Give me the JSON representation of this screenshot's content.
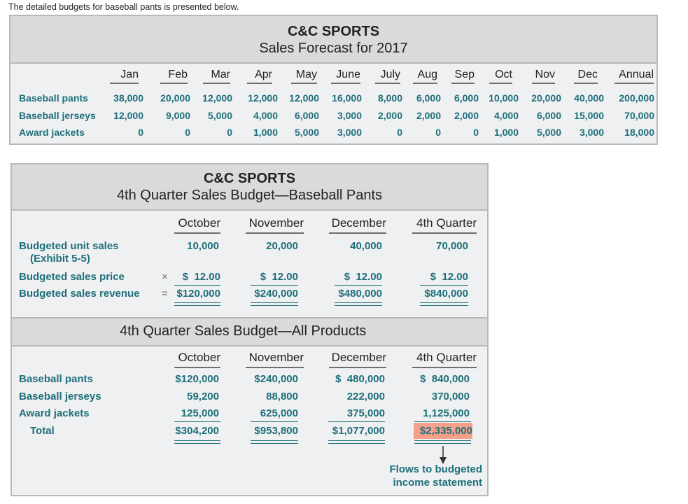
{
  "intro": "The detailed budgets for baseball pants is presented below.",
  "forecast": {
    "company": "C&C SPORTS",
    "title": "Sales Forecast for 2017",
    "months": [
      "Jan",
      "Feb",
      "Mar",
      "Apr",
      "May",
      "June",
      "July",
      "Aug",
      "Sep",
      "Oct",
      "Nov",
      "Dec",
      "Annual"
    ],
    "rows": [
      {
        "label": "Baseball pants",
        "values": [
          "38,000",
          "20,000",
          "12,000",
          "12,000",
          "12,000",
          "16,000",
          "8,000",
          "6,000",
          "6,000",
          "10,000",
          "20,000",
          "40,000",
          "200,000"
        ]
      },
      {
        "label": "Baseball jerseys",
        "values": [
          "12,000",
          "9,000",
          "5,000",
          "4,000",
          "6,000",
          "3,000",
          "2,000",
          "2,000",
          "2,000",
          "4,000",
          "6,000",
          "15,000",
          "70,000"
        ]
      },
      {
        "label": "Award jackets",
        "values": [
          "0",
          "0",
          "0",
          "1,000",
          "5,000",
          "3,000",
          "0",
          "0",
          "0",
          "1,000",
          "5,000",
          "3,000",
          "18,000"
        ]
      }
    ]
  },
  "pants_budget": {
    "company": "C&C SPORTS",
    "title": "4th Quarter Sales Budget—Baseball Pants",
    "columns": [
      "October",
      "November",
      "December",
      "4th Quarter"
    ],
    "unit_sales_label": "Budgeted unit sales",
    "unit_sales_sub": "(Exhibit 5-5)",
    "unit_sales": [
      "10,000",
      "20,000",
      "40,000",
      "70,000"
    ],
    "price_label": "Budgeted sales price",
    "price_op": "×",
    "price": [
      "$  12.00",
      "$  12.00",
      "$  12.00",
      "$  12.00"
    ],
    "revenue_label": "Budgeted sales revenue",
    "revenue_op": "=",
    "revenue": [
      "$120,000",
      "$240,000",
      "$480,000",
      "$840,000"
    ]
  },
  "all_budget": {
    "title": "4th Quarter Sales Budget—All Products",
    "columns": [
      "October",
      "November",
      "December",
      "4th Quarter"
    ],
    "rows": [
      {
        "label": "Baseball pants",
        "values": [
          "$120,000",
          "$240,000",
          "$  480,000",
          "$  840,000"
        ]
      },
      {
        "label": "Baseball jerseys",
        "values": [
          "59,200",
          "88,800",
          "222,000",
          "370,000"
        ]
      },
      {
        "label": "Award jackets",
        "values": [
          "125,000",
          "625,000",
          "375,000",
          "1,125,000"
        ]
      }
    ],
    "total_label": "Total",
    "totals": [
      "$304,200",
      "$953,800",
      "$1,077,000",
      "$2,335,000"
    ],
    "highlight_color": "#f6a08c"
  },
  "flows_note": [
    "Flows to budgeted",
    "income statement"
  ]
}
